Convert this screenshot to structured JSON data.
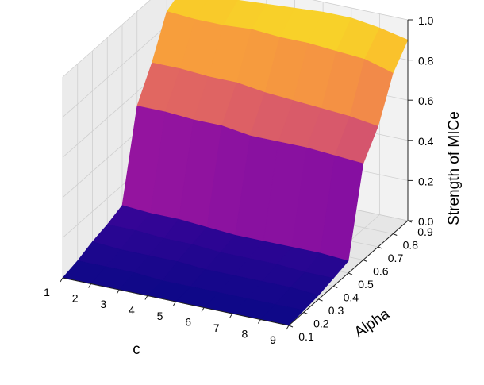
{
  "chart_data": {
    "type": "surface3d",
    "xlabel": "c",
    "ylabel": "Alpha",
    "zlabel": "Strength of MICe",
    "x_ticks": [
      "1",
      "2",
      "3",
      "4",
      "5",
      "6",
      "7",
      "8",
      "9"
    ],
    "y_ticks": [
      "0.1",
      "0.2",
      "0.3",
      "0.4",
      "0.5",
      "0.6",
      "0.7",
      "0.8",
      "0.9"
    ],
    "z_ticks": [
      "0.0",
      "0.2",
      "0.4",
      "0.6",
      "0.8",
      "1.0"
    ],
    "zlim": [
      0,
      1
    ],
    "colormap": "plasma",
    "colormap_stops": [
      "#0d0887",
      "#5c01a6",
      "#9c179e",
      "#cc4778",
      "#ed7953",
      "#fdb42f",
      "#f0f921"
    ],
    "pane_color": "#f2f2f2",
    "grid": true,
    "x": [
      1,
      2,
      3,
      4,
      5,
      6,
      7,
      8,
      9
    ],
    "y": [
      0.1,
      0.2,
      0.3,
      0.4,
      0.5,
      0.6,
      0.7,
      0.8,
      0.9
    ],
    "z": [
      [
        0.0,
        0.02,
        0.05,
        0.07,
        0.1,
        0.53,
        0.68,
        0.87,
        0.91
      ],
      [
        0.0,
        0.02,
        0.04,
        0.07,
        0.09,
        0.53,
        0.68,
        0.86,
        0.91
      ],
      [
        0.0,
        0.02,
        0.04,
        0.06,
        0.09,
        0.52,
        0.67,
        0.86,
        0.92
      ],
      [
        0.0,
        0.01,
        0.04,
        0.06,
        0.08,
        0.52,
        0.67,
        0.87,
        0.93
      ],
      [
        0.0,
        0.01,
        0.03,
        0.05,
        0.07,
        0.5,
        0.65,
        0.86,
        0.94
      ],
      [
        0.0,
        0.01,
        0.03,
        0.05,
        0.07,
        0.5,
        0.64,
        0.86,
        0.95
      ],
      [
        0.0,
        0.01,
        0.03,
        0.05,
        0.07,
        0.5,
        0.63,
        0.85,
        0.95
      ],
      [
        0.0,
        0.01,
        0.03,
        0.04,
        0.07,
        0.49,
        0.62,
        0.84,
        0.93
      ],
      [
        0.0,
        0.01,
        0.02,
        0.04,
        0.06,
        0.48,
        0.6,
        0.8,
        0.9
      ]
    ]
  }
}
